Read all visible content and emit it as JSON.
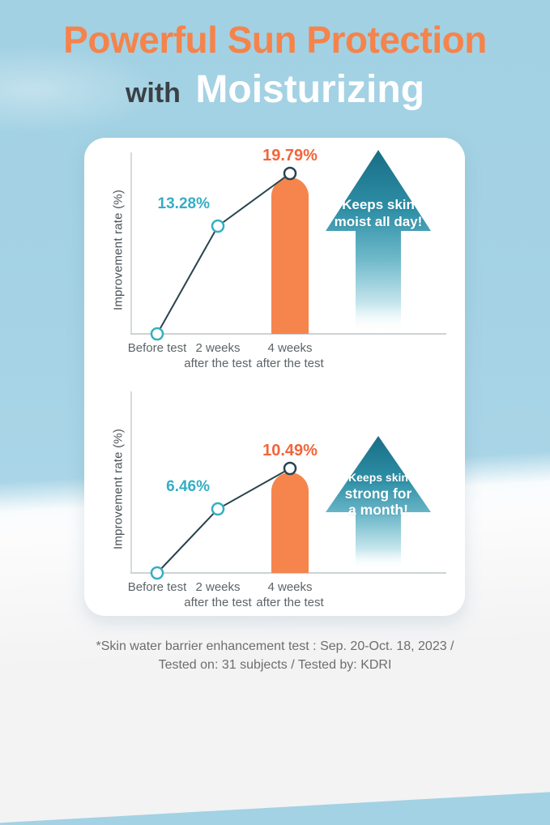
{
  "title": {
    "line1": "Powerful Sun Protection",
    "line2_prefix": "with",
    "line2_highlight": "Moisturizing"
  },
  "colors": {
    "title_orange": "#F5834B",
    "bar_orange": "#F5854D",
    "value_orange": "#F2653B",
    "teal": "#35AEC4",
    "line_dark": "#28444E",
    "arrow_teal_top": "#186E86",
    "sky_blue": "#A2D1E3",
    "card_white": "#FFFFFF"
  },
  "chart_data": [
    {
      "type": "line",
      "title": "Skin moisture improvement",
      "ylabel": "Improvement rate (%)",
      "xlabel": "",
      "categories": [
        "Before test",
        "2 weeks after the test",
        "4 weeks after the test"
      ],
      "values": [
        0,
        13.28,
        19.79
      ],
      "value_labels": [
        "",
        "13.28%",
        "19.79%"
      ],
      "tick_lines": [
        [
          "Before test"
        ],
        [
          "2 weeks",
          "after the test"
        ],
        [
          "4 weeks",
          "after the test"
        ]
      ],
      "bar_category": "4 weeks after the test",
      "bar_value": 19.79,
      "annotation": "Keeps skin moist all day!",
      "arrow_lines": [
        "Keeps skin",
        "moist all day!"
      ],
      "grid": "off",
      "legend": "none"
    },
    {
      "type": "line",
      "title": "Skin barrier strength improvement",
      "ylabel": "Improvement rate (%)",
      "xlabel": "",
      "categories": [
        "Before test",
        "2 weeks after the test",
        "4 weeks after the test"
      ],
      "values": [
        0,
        6.46,
        10.49
      ],
      "value_labels": [
        "",
        "6.46%",
        "10.49%"
      ],
      "tick_lines": [
        [
          "Before test"
        ],
        [
          "2 weeks",
          "after the test"
        ],
        [
          "4 weeks",
          "after the test"
        ]
      ],
      "bar_category": "4 weeks after the test",
      "bar_value": 10.49,
      "annotation": "Keeps skin strong for a month!",
      "arrow_lines": [
        "Keeps skin",
        "strong for",
        "a month!"
      ],
      "grid": "off",
      "legend": "none"
    }
  ],
  "footnote": {
    "line1": "*Skin water barrier enhancement test : Sep. 20-Oct. 18, 2023 /",
    "line2": "Tested on: 31 subjects / Tested by: KDRI"
  }
}
